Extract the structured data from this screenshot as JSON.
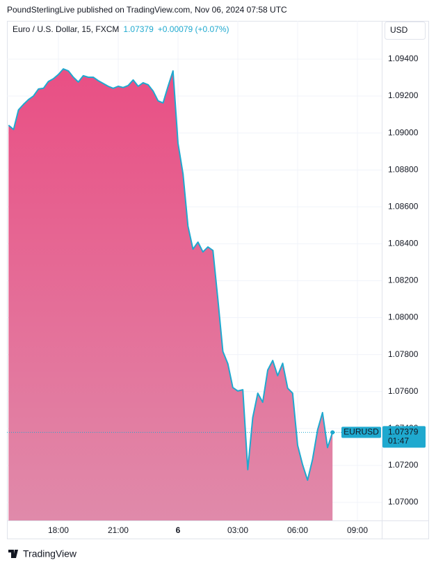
{
  "header": {
    "text": "PoundSterlingLive published on TradingView.com, Nov 06, 2024 07:58 UTC"
  },
  "chart_data": {
    "type": "area",
    "title": "Euro / U.S. Dollar, 15, FXCM",
    "change": "+0.00079 (+0.07%)",
    "currency": "USD",
    "countdown": "01:47",
    "x": [
      15.5,
      15.75,
      16,
      16.25,
      16.5,
      16.75,
      17,
      17.25,
      17.5,
      17.75,
      18,
      18.25,
      18.5,
      18.75,
      19,
      19.25,
      19.5,
      19.75,
      20,
      20.25,
      20.5,
      20.75,
      21,
      21.25,
      21.5,
      21.75,
      22,
      22.25,
      22.5,
      22.75,
      23,
      23.25,
      23.5,
      23.75,
      24,
      24.25,
      24.5,
      24.75,
      25,
      25.25,
      25.5,
      25.75,
      26,
      26.25,
      26.5,
      26.75,
      27,
      27.25,
      27.5,
      27.75,
      28,
      28.25,
      28.5,
      28.75,
      29,
      29.25,
      29.5,
      29.75,
      30,
      30.25,
      30.5,
      30.75,
      31,
      31.25,
      31.5,
      31.75
    ],
    "series": [
      {
        "name": "EURUSD",
        "color": "#1fa9cf",
        "fill": "#e94f84",
        "fill_bottom": "#e08aaa",
        "values": [
          1.09042,
          1.09019,
          1.09125,
          1.09155,
          1.09181,
          1.092,
          1.09238,
          1.09242,
          1.09279,
          1.09294,
          1.09317,
          1.09347,
          1.09336,
          1.09302,
          1.09276,
          1.0931,
          1.09302,
          1.09302,
          1.09283,
          1.09268,
          1.09253,
          1.09242,
          1.09253,
          1.09246,
          1.09257,
          1.09287,
          1.09253,
          1.09272,
          1.09261,
          1.09227,
          1.09174,
          1.09163,
          1.09253,
          1.09336,
          1.08944,
          1.08778,
          1.08496,
          1.08371,
          1.08409,
          1.08356,
          1.08383,
          1.08364,
          1.081,
          1.07817,
          1.0775,
          1.07622,
          1.07603,
          1.0761,
          1.07177,
          1.0746,
          1.07591,
          1.07542,
          1.07716,
          1.07768,
          1.07686,
          1.07753,
          1.07618,
          1.07591,
          1.07309,
          1.07203,
          1.0712,
          1.07233,
          1.07392,
          1.07486,
          1.07297,
          1.07379
        ]
      }
    ],
    "xlim": [
      15.42,
      34.22
    ],
    "xticks": [
      {
        "value": 18,
        "label": "18:00"
      },
      {
        "value": 21,
        "label": "21:00"
      },
      {
        "value": 24,
        "label": "6"
      },
      {
        "value": 27,
        "label": "03:00"
      },
      {
        "value": 30,
        "label": "06:00"
      },
      {
        "value": 33,
        "label": "09:00"
      }
    ],
    "ylim": [
      1.06902,
      1.09607
    ],
    "yticks": [
      {
        "value": 1.07,
        "label": "1.07000"
      },
      {
        "value": 1.072,
        "label": "1.07200"
      },
      {
        "value": 1.074,
        "label": "1.07400"
      },
      {
        "value": 1.076,
        "label": "1.07600"
      },
      {
        "value": 1.078,
        "label": "1.07800"
      },
      {
        "value": 1.08,
        "label": "1.08000"
      },
      {
        "value": 1.082,
        "label": "1.08200"
      },
      {
        "value": 1.084,
        "label": "1.08400"
      },
      {
        "value": 1.086,
        "label": "1.08600"
      },
      {
        "value": 1.088,
        "label": "1.08800"
      },
      {
        "value": 1.09,
        "label": "1.09000"
      },
      {
        "value": 1.092,
        "label": "1.09200"
      },
      {
        "value": 1.094,
        "label": "1.09400"
      }
    ],
    "grid": true
  },
  "footer": {
    "brand": "TradingView"
  }
}
